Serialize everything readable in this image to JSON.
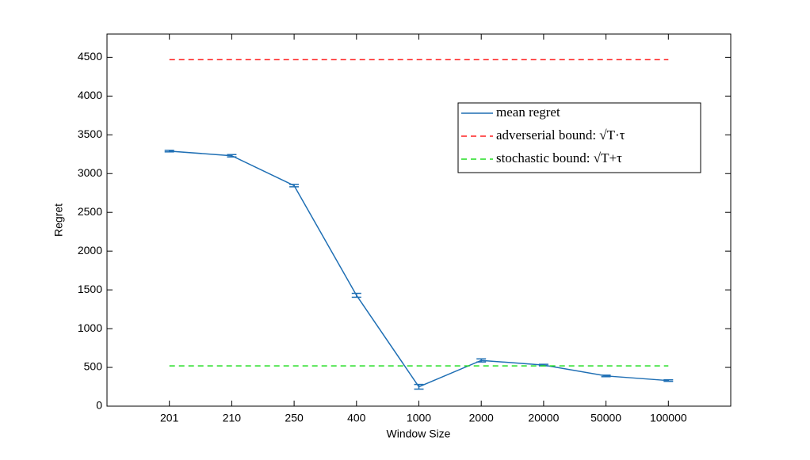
{
  "chart_data": {
    "type": "line",
    "x_label": "Window Size",
    "y_label": "Regret",
    "categories": [
      "201",
      "210",
      "250",
      "400",
      "1000",
      "2000",
      "20000",
      "50000",
      "100000"
    ],
    "series": [
      {
        "name": "mean regret",
        "color": "#1f6fb4",
        "style": "solid",
        "values": [
          3290,
          3230,
          2845,
          1430,
          250,
          590,
          530,
          390,
          330
        ],
        "errors": [
          10,
          15,
          15,
          25,
          30,
          20,
          10,
          10,
          10
        ]
      },
      {
        "name": "adverserial bound: √T·τ",
        "color": "#ff2020",
        "style": "dashed",
        "values": [
          4470,
          4470,
          4470,
          4470,
          4470,
          4470,
          4470,
          4470,
          4470
        ]
      },
      {
        "name": "stochastic bound: √T+τ",
        "color": "#22dd22",
        "style": "dashed",
        "values": [
          520,
          520,
          520,
          520,
          520,
          520,
          520,
          520,
          520
        ]
      }
    ],
    "ylim": [
      0,
      4800
    ],
    "yticks": [
      0,
      500,
      1000,
      1500,
      2000,
      2500,
      3000,
      3500,
      4000,
      4500
    ],
    "grid": false,
    "legend": "upper right"
  }
}
